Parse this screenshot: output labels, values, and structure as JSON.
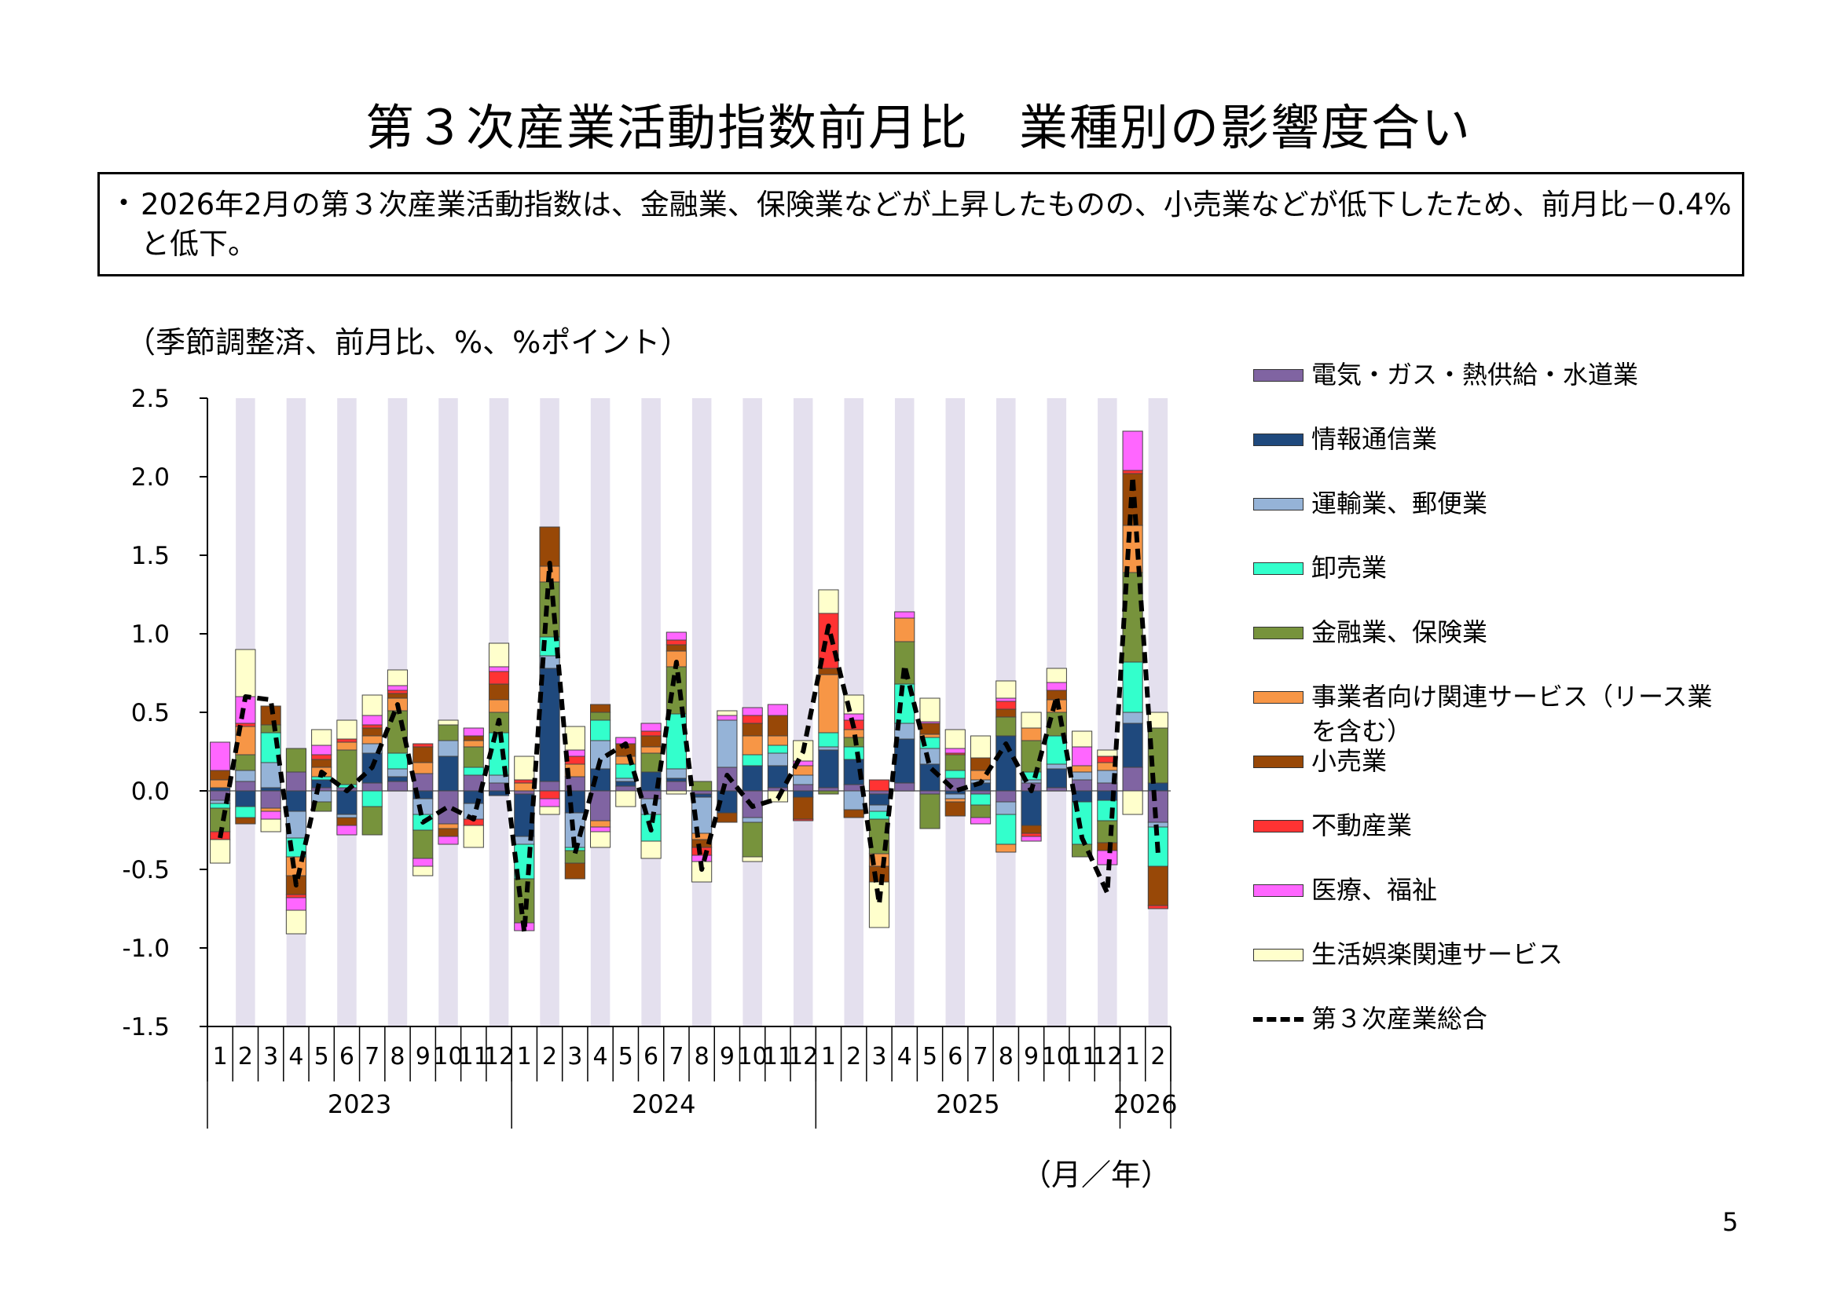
{
  "page": {
    "title": "第３次産業活動指数前月比　業種別の影響度合い",
    "summary_bullet": "・",
    "summary": "2026年2月の第３次産業活動指数は、金融業、保険業などが上昇したものの、小売業などが低下したため、前月比－0.4%と低下。",
    "unit_label": "（季節調整済、前月比、%、%ポイント）",
    "x_unit_label": "（月／年）",
    "page_number": "5"
  },
  "chart_data": {
    "type": "bar",
    "stacked": true,
    "ylim": [
      -1.5,
      2.5
    ],
    "yticks": [
      "2.5",
      "2.0",
      "1.5",
      "1.0",
      "0.5",
      "0.0",
      "-0.5",
      "-1.0",
      "-1.5"
    ],
    "ytick_values": [
      2.5,
      2.0,
      1.5,
      1.0,
      0.5,
      0.0,
      -0.5,
      -1.0,
      -1.5
    ],
    "categories": [
      "1",
      "2",
      "3",
      "4",
      "5",
      "6",
      "7",
      "8",
      "9",
      "10",
      "11",
      "12",
      "1",
      "2",
      "3",
      "4",
      "5",
      "6",
      "7",
      "8",
      "9",
      "10",
      "11",
      "12",
      "1",
      "2",
      "3",
      "4",
      "5",
      "6",
      "7",
      "8",
      "9",
      "10",
      "11",
      "12",
      "1",
      "2"
    ],
    "years": [
      {
        "label": "2023",
        "months": 12
      },
      {
        "label": "2024",
        "months": 12
      },
      {
        "label": "2025",
        "months": 12
      },
      {
        "label": "2026",
        "months": 2
      }
    ],
    "shading": "even-months",
    "series": [
      {
        "name": "電気・ガス・熱供給・水道業",
        "color": "#8064a2",
        "values": [
          -0.06,
          0.06,
          -0.11,
          0.12,
          0.02,
          0.02,
          0.05,
          0.06,
          0.11,
          -0.21,
          0.1,
          0.05,
          -0.02,
          0.06,
          0.09,
          -0.19,
          0.03,
          -0.05,
          0.06,
          -0.02,
          0.15,
          -0.17,
          0.02,
          0.04,
          0.02,
          0.04,
          -0.02,
          0.05,
          -0.02,
          0.08,
          -0.02,
          -0.07,
          0.05,
          0.02,
          0.07,
          0.05,
          0.15,
          -0.2
        ]
      },
      {
        "name": "情報通信業",
        "color": "#1f497d",
        "values": [
          0.02,
          -0.1,
          0.02,
          -0.13,
          0.05,
          -0.15,
          0.19,
          0.03,
          -0.05,
          0.22,
          -0.08,
          -0.03,
          -0.27,
          0.72,
          -0.14,
          0.14,
          0.03,
          0.12,
          0.02,
          -0.02,
          -0.14,
          0.16,
          0.14,
          -0.04,
          0.24,
          0.16,
          -0.07,
          0.28,
          0.17,
          -0.02,
          0.05,
          0.35,
          -0.22,
          0.12,
          -0.07,
          -0.06,
          0.28,
          0.05
        ]
      },
      {
        "name": "運輸業、郵便業",
        "color": "#95b3d7",
        "values": [
          -0.02,
          0.07,
          0.16,
          -0.17,
          -0.07,
          -0.02,
          0.06,
          0.05,
          -0.1,
          0.1,
          -0.1,
          0.05,
          -0.05,
          0.08,
          -0.22,
          0.18,
          0.02,
          -0.1,
          0.06,
          -0.23,
          0.3,
          -0.03,
          0.08,
          0.06,
          0.02,
          -0.12,
          -0.04,
          0.1,
          0.1,
          -0.03,
          0.02,
          -0.08,
          0.02,
          0.03,
          0.05,
          0.08,
          0.07,
          -0.03
        ]
      },
      {
        "name": "卸売業",
        "color": "#33ffcc",
        "values": [
          -0.03,
          -0.07,
          0.19,
          -0.12,
          0.02,
          0.02,
          -0.1,
          0.1,
          -0.1,
          0.0,
          0.05,
          0.27,
          -0.22,
          0.12,
          -0.02,
          0.13,
          0.09,
          -0.17,
          0.35,
          0.0,
          0.0,
          0.07,
          0.05,
          0.0,
          0.09,
          0.08,
          -0.05,
          0.25,
          0.07,
          0.05,
          -0.07,
          -0.19,
          0.05,
          0.18,
          -0.27,
          -0.13,
          0.32,
          -0.25
        ]
      },
      {
        "name": "金融業、保険業",
        "color": "#77933c",
        "values": [
          -0.15,
          0.1,
          0.05,
          0.15,
          -0.06,
          0.22,
          -0.18,
          0.27,
          -0.18,
          0.1,
          0.13,
          0.13,
          -0.28,
          0.35,
          -0.08,
          0.05,
          0.0,
          0.12,
          0.3,
          0.06,
          0.0,
          -0.22,
          0.0,
          0.0,
          -0.02,
          0.06,
          -0.22,
          0.27,
          -0.22,
          0.1,
          -0.08,
          0.12,
          0.2,
          0.15,
          -0.08,
          -0.14,
          0.57,
          0.35
        ]
      },
      {
        "name": "事業者向け関連サービス（リース業を含む）",
        "color": "#f79646",
        "values": [
          0.05,
          0.18,
          -0.02,
          -0.12,
          0.06,
          0.05,
          0.05,
          0.08,
          0.07,
          -0.03,
          0.04,
          0.08,
          0.05,
          0.1,
          0.08,
          -0.04,
          0.05,
          0.04,
          0.1,
          -0.04,
          0.0,
          0.12,
          0.06,
          0.06,
          0.37,
          0.05,
          -0.08,
          0.15,
          0.02,
          -0.02,
          0.06,
          -0.05,
          0.08,
          0.08,
          0.04,
          0.05,
          0.3,
          0.0
        ]
      },
      {
        "name": "小売業",
        "color": "#984807",
        "values": [
          0.06,
          -0.04,
          0.12,
          -0.12,
          0.05,
          -0.05,
          0.05,
          0.03,
          0.1,
          -0.05,
          0.03,
          0.1,
          0.0,
          0.25,
          -0.1,
          0.05,
          0.08,
          0.07,
          0.04,
          -0.05,
          -0.06,
          0.08,
          0.13,
          -0.14,
          0.04,
          -0.05,
          -0.1,
          0.0,
          0.07,
          -0.09,
          0.08,
          0.05,
          -0.05,
          0.06,
          0.0,
          -0.05,
          0.33,
          -0.25
        ]
      },
      {
        "name": "不動産業",
        "color": "#ff3333",
        "values": [
          -0.05,
          0.02,
          0.0,
          -0.02,
          0.03,
          0.02,
          0.02,
          0.02,
          0.02,
          0.0,
          -0.04,
          0.08,
          0.02,
          -0.05,
          0.05,
          0.0,
          0.0,
          0.03,
          0.03,
          -0.05,
          0.0,
          0.05,
          0.0,
          -0.01,
          0.35,
          0.06,
          0.07,
          0.0,
          0.0,
          0.01,
          0.0,
          0.05,
          -0.02,
          0.0,
          0.0,
          0.04,
          0.02,
          -0.02
        ]
      },
      {
        "name": "医療、福祉",
        "color": "#ff66ff",
        "values": [
          0.18,
          0.17,
          -0.05,
          -0.08,
          0.06,
          -0.06,
          0.06,
          0.03,
          -0.05,
          -0.05,
          0.05,
          0.03,
          -0.05,
          -0.05,
          0.04,
          -0.03,
          0.04,
          0.05,
          0.05,
          -0.04,
          0.03,
          0.05,
          0.07,
          0.03,
          0.0,
          0.04,
          0.0,
          0.04,
          0.01,
          0.03,
          -0.04,
          0.02,
          -0.03,
          0.05,
          0.12,
          -0.09,
          0.25,
          0.0
        ]
      },
      {
        "name": "生活娯楽関連サービス",
        "color": "#ffffcc",
        "values": [
          -0.15,
          0.3,
          -0.08,
          -0.15,
          0.1,
          0.12,
          0.13,
          0.1,
          -0.06,
          0.03,
          -0.14,
          0.15,
          0.15,
          -0.05,
          0.15,
          -0.1,
          -0.1,
          -0.11,
          -0.02,
          -0.13,
          0.03,
          -0.03,
          -0.07,
          0.13,
          0.15,
          0.12,
          -0.29,
          0.0,
          0.15,
          0.12,
          0.14,
          0.11,
          0.1,
          0.09,
          0.1,
          0.04,
          -0.15,
          0.1
        ]
      }
    ],
    "total": {
      "name": "第３次産業総合",
      "color": "#000000",
      "values": [
        -0.3,
        0.6,
        0.58,
        -0.6,
        0.12,
        0.0,
        0.15,
        0.55,
        -0.2,
        -0.1,
        -0.18,
        0.45,
        -0.9,
        1.45,
        -0.4,
        0.2,
        0.3,
        -0.25,
        0.82,
        -0.5,
        0.1,
        -0.1,
        -0.05,
        0.25,
        1.05,
        0.4,
        -0.72,
        0.8,
        0.15,
        0.0,
        0.05,
        0.3,
        0.0,
        0.6,
        -0.3,
        -0.65,
        2.0,
        -0.4
      ]
    }
  }
}
